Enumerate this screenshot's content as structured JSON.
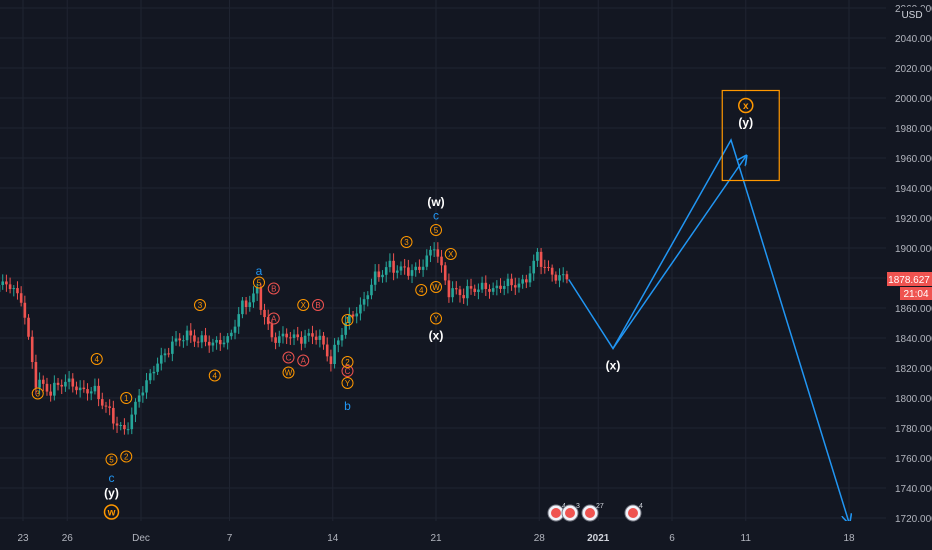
{
  "currency": "USD",
  "price_axis": {
    "ticks": [
      "2060.000",
      "2040.000",
      "2020.000",
      "2000.000",
      "1980.000",
      "1960.000",
      "1940.000",
      "1920.000",
      "1900.000",
      "1880.000",
      "1860.000",
      "1840.000",
      "1820.000",
      "1800.000",
      "1780.000",
      "1760.000",
      "1740.000",
      "1720.000"
    ],
    "last_price": "1878.627",
    "countdown": "21:04"
  },
  "time_axis": {
    "ticks": [
      "23",
      "26",
      "Dec",
      "7",
      "14",
      "21",
      "28",
      "2021",
      "6",
      "11",
      "18"
    ]
  },
  "event_badges": [
    "4",
    "3",
    "27",
    "4"
  ],
  "colors": {
    "background": "#131722",
    "up": "#26a69a",
    "down": "#ef5350",
    "projection": "#2196f3",
    "wave_orange": "#ff9800",
    "wave_red": "#ef5350",
    "wave_blue": "#2196f3",
    "text_light": "#ffffff",
    "axis_text": "#b2b5be"
  },
  "chart_data": {
    "type": "candlestick",
    "instrument_unit": "USD",
    "ylim": [
      1715,
      2065
    ],
    "x_range": [
      "2020-11-20",
      "2021-01-20"
    ],
    "last_price": 1878.627,
    "projection_path": [
      {
        "date": "2020-12-30",
        "price": 1879
      },
      {
        "date": "2021-01-02",
        "price": 1833
      },
      {
        "date": "2021-01-10",
        "price": 1972
      },
      {
        "date": "2021-01-18",
        "price": 1717
      }
    ],
    "projection_alt": [
      {
        "date": "2021-01-02",
        "price": 1833
      },
      {
        "date": "2021-01-11",
        "price": 1961
      }
    ],
    "target_box": {
      "date_from": "2021-01-09",
      "date_to": "2021-01-13",
      "price_from": 1945,
      "price_to": 2005
    },
    "price_path": [
      {
        "date": "2020-11-20",
        "price": 1866
      },
      {
        "date": "2020-11-21",
        "price": 1872
      },
      {
        "date": "2020-11-22",
        "price": 1875
      },
      {
        "date": "2020-11-23",
        "price": 1865
      },
      {
        "date": "2020-11-24",
        "price": 1810
      },
      {
        "date": "2020-11-25",
        "price": 1805
      },
      {
        "date": "2020-11-26",
        "price": 1813
      },
      {
        "date": "2020-11-27",
        "price": 1807
      },
      {
        "date": "2020-11-28",
        "price": 1806
      },
      {
        "date": "2020-11-29",
        "price": 1790
      },
      {
        "date": "2020-11-30",
        "price": 1776
      },
      {
        "date": "2020-12-01",
        "price": 1800
      },
      {
        "date": "2020-12-02",
        "price": 1818
      },
      {
        "date": "2020-12-03",
        "price": 1832
      },
      {
        "date": "2020-12-04",
        "price": 1842
      },
      {
        "date": "2020-12-05",
        "price": 1840
      },
      {
        "date": "2020-12-06",
        "price": 1838
      },
      {
        "date": "2020-12-07",
        "price": 1840
      },
      {
        "date": "2020-12-08",
        "price": 1862
      },
      {
        "date": "2020-12-09",
        "price": 1870
      },
      {
        "date": "2020-12-10",
        "price": 1838
      },
      {
        "date": "2020-12-11",
        "price": 1840
      },
      {
        "date": "2020-12-12",
        "price": 1838
      },
      {
        "date": "2020-12-13",
        "price": 1842
      },
      {
        "date": "2020-12-14",
        "price": 1826
      },
      {
        "date": "2020-12-15",
        "price": 1852
      },
      {
        "date": "2020-12-16",
        "price": 1862
      },
      {
        "date": "2020-12-17",
        "price": 1882
      },
      {
        "date": "2020-12-18",
        "price": 1888
      },
      {
        "date": "2020-12-19",
        "price": 1884
      },
      {
        "date": "2020-12-20",
        "price": 1884
      },
      {
        "date": "2020-12-21",
        "price": 1900
      },
      {
        "date": "2020-12-22",
        "price": 1870
      },
      {
        "date": "2020-12-23",
        "price": 1870
      },
      {
        "date": "2020-12-24",
        "price": 1875
      },
      {
        "date": "2020-12-25",
        "price": 1874
      },
      {
        "date": "2020-12-26",
        "price": 1878
      },
      {
        "date": "2020-12-27",
        "price": 1876
      },
      {
        "date": "2020-12-28",
        "price": 1894
      },
      {
        "date": "2020-12-29",
        "price": 1880
      },
      {
        "date": "2020-12-30",
        "price": 1879
      }
    ],
    "wave_labels": [
      {
        "text": "3",
        "date": "2020-11-24",
        "price": 1803,
        "style": "orange-circle"
      },
      {
        "text": "4",
        "date": "2020-11-28",
        "price": 1826,
        "style": "orange-circle"
      },
      {
        "text": "1",
        "date": "2020-11-30",
        "price": 1800,
        "style": "orange-circle"
      },
      {
        "text": "5",
        "date": "2020-11-29",
        "price": 1759,
        "style": "orange-circle"
      },
      {
        "text": "2",
        "date": "2020-11-30",
        "price": 1761,
        "style": "orange-circle"
      },
      {
        "text": "c",
        "date": "2020-11-29",
        "price": 1747,
        "style": "blue"
      },
      {
        "text": "(y)",
        "date": "2020-11-29",
        "price": 1737,
        "style": "white"
      },
      {
        "text": "w",
        "date": "2020-11-29",
        "price": 1724,
        "style": "orange-ring"
      },
      {
        "text": "4",
        "date": "2020-12-06",
        "price": 1815,
        "style": "orange-circle"
      },
      {
        "text": "3",
        "date": "2020-12-05",
        "price": 1862,
        "style": "orange-circle"
      },
      {
        "text": "a",
        "date": "2020-12-09",
        "price": 1885,
        "style": "blue"
      },
      {
        "text": "5",
        "date": "2020-12-09",
        "price": 1877,
        "style": "orange-circle"
      },
      {
        "text": "B",
        "date": "2020-12-10",
        "price": 1873,
        "style": "red-circle"
      },
      {
        "text": "A",
        "date": "2020-12-10",
        "price": 1853,
        "style": "red-circle"
      },
      {
        "text": "C",
        "date": "2020-12-11",
        "price": 1827,
        "style": "red-circle"
      },
      {
        "text": "W",
        "date": "2020-12-11",
        "price": 1817,
        "style": "orange-circle"
      },
      {
        "text": "X",
        "date": "2020-12-12",
        "price": 1862,
        "style": "orange-circle"
      },
      {
        "text": "B",
        "date": "2020-12-13",
        "price": 1862,
        "style": "red-circle"
      },
      {
        "text": "A",
        "date": "2020-12-12",
        "price": 1825,
        "style": "red-circle"
      },
      {
        "text": "1",
        "date": "2020-12-15",
        "price": 1852,
        "style": "orange-circle"
      },
      {
        "text": "C",
        "date": "2020-12-15",
        "price": 1818,
        "style": "red-circle"
      },
      {
        "text": "Y",
        "date": "2020-12-15",
        "price": 1810,
        "style": "orange-circle"
      },
      {
        "text": "2",
        "date": "2020-12-15",
        "price": 1824,
        "style": "orange-circle"
      },
      {
        "text": "b",
        "date": "2020-12-15",
        "price": 1795,
        "style": "blue"
      },
      {
        "text": "3",
        "date": "2020-12-19",
        "price": 1904,
        "style": "orange-circle"
      },
      {
        "text": "(w)",
        "date": "2020-12-21",
        "price": 1931,
        "style": "white"
      },
      {
        "text": "c",
        "date": "2020-12-21",
        "price": 1922,
        "style": "blue"
      },
      {
        "text": "5",
        "date": "2020-12-21",
        "price": 1912,
        "style": "orange-circle"
      },
      {
        "text": "X",
        "date": "2020-12-22",
        "price": 1896,
        "style": "orange-circle"
      },
      {
        "text": "4",
        "date": "2020-12-20",
        "price": 1872,
        "style": "orange-circle"
      },
      {
        "text": "W",
        "date": "2020-12-21",
        "price": 1874,
        "style": "orange-circle"
      },
      {
        "text": "Y",
        "date": "2020-12-21",
        "price": 1853,
        "style": "orange-circle"
      },
      {
        "text": "(x)",
        "date": "2020-12-21",
        "price": 1842,
        "style": "white"
      },
      {
        "text": "(x)",
        "date": "2021-01-02",
        "price": 1822,
        "style": "white"
      },
      {
        "text": "x",
        "date": "2021-01-11",
        "price": 1995,
        "style": "orange-ring"
      },
      {
        "text": "(y)",
        "date": "2021-01-11",
        "price": 1984,
        "style": "white"
      }
    ]
  }
}
